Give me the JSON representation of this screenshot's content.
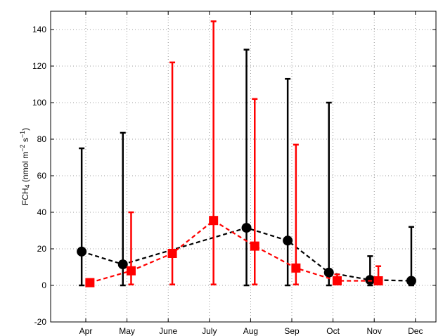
{
  "chart_data": {
    "type": "line",
    "xlabel": "",
    "ylabel": {
      "prefix": "FCH",
      "subscript": "4",
      "units_open": " (nmol m",
      "units_exp1": "−2",
      "units_mid": " s",
      "units_exp2": "−1",
      "units_close": ")"
    },
    "ylim": [
      -20,
      150
    ],
    "yticks": [
      -20,
      0,
      20,
      40,
      60,
      80,
      100,
      120,
      140
    ],
    "categories": [
      "Apr",
      "May",
      "June",
      "July",
      "Aug",
      "Sep",
      "Oct",
      "Nov",
      "Dec"
    ],
    "grid": true,
    "series": [
      {
        "color": "#000000",
        "marker": "circle",
        "line_style": "dashed",
        "offset": -0.1,
        "points": [
          {
            "month": "Apr",
            "value": 18.5,
            "low": 0,
            "high": 75
          },
          {
            "month": "May",
            "value": 11.5,
            "low": 0,
            "high": 83.5
          },
          {
            "month": "Aug",
            "value": 31.5,
            "low": 0,
            "high": 129
          },
          {
            "month": "Sep",
            "value": 24.5,
            "low": 0,
            "high": 113
          },
          {
            "month": "Oct",
            "value": 7,
            "low": 0,
            "high": 100
          },
          {
            "month": "Nov",
            "value": 3,
            "low": 0,
            "high": 16
          },
          {
            "month": "Dec",
            "value": 2.5,
            "low": 0,
            "high": 32
          }
        ]
      },
      {
        "color": "#ff0000",
        "marker": "square",
        "line_style": "dashed",
        "offset": 0.1,
        "points": [
          {
            "month": "Apr",
            "value": 1.5,
            "low": 1.5,
            "high": 1.5
          },
          {
            "month": "May",
            "value": 8,
            "low": 0.5,
            "high": 40
          },
          {
            "month": "June",
            "value": 17.5,
            "low": 0.5,
            "high": 122
          },
          {
            "month": "July",
            "value": 35.5,
            "low": 0.5,
            "high": 144.5
          },
          {
            "month": "Aug",
            "value": 21.5,
            "low": 0.5,
            "high": 102
          },
          {
            "month": "Sep",
            "value": 9.5,
            "low": 0.5,
            "high": 77
          },
          {
            "month": "Oct",
            "value": 2.5,
            "low": 0.5,
            "high": 6
          },
          {
            "month": "Nov",
            "value": 2.5,
            "low": 0.5,
            "high": 10.5
          }
        ]
      }
    ]
  }
}
